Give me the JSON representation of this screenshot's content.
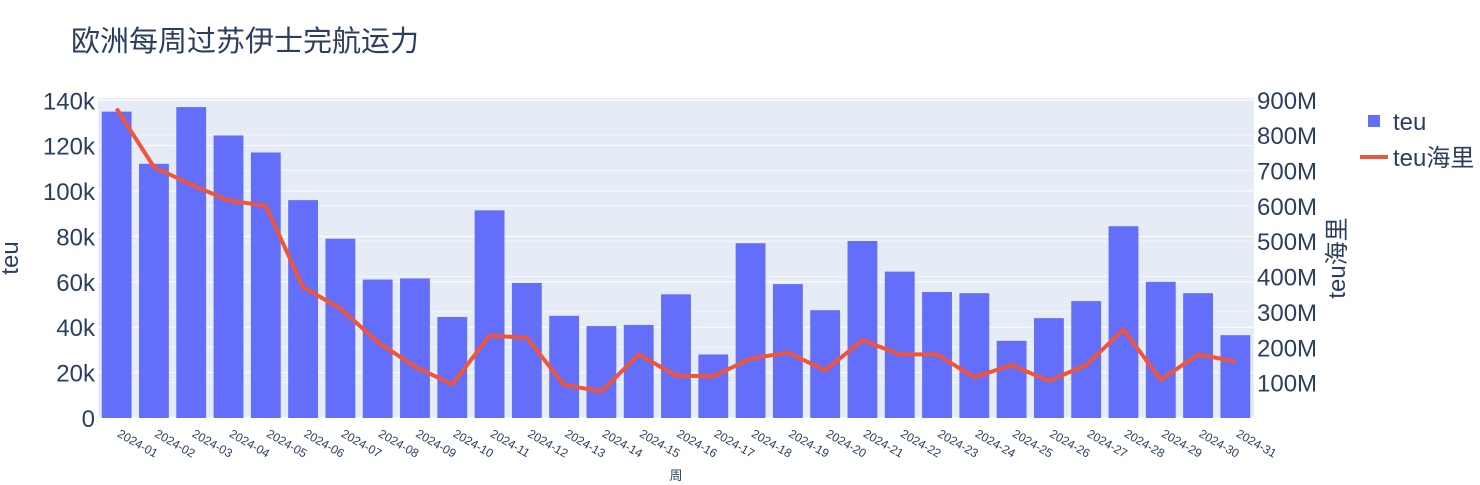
{
  "chart_data": {
    "type": "bar+line",
    "title": "欧洲每周过苏伊士完航运力",
    "xlabel": "周",
    "ylabel_left": "teu",
    "ylabel_right": "teu海里",
    "grid": true,
    "legend_position": "top-right",
    "categories": [
      "2024-01",
      "2024-02",
      "2024-03",
      "2024-04",
      "2024-05",
      "2024-06",
      "2024-07",
      "2024-08",
      "2024-09",
      "2024-10",
      "2024-11",
      "2024-12",
      "2024-13",
      "2024-14",
      "2024-15",
      "2024-16",
      "2024-17",
      "2024-18",
      "2024-19",
      "2024-20",
      "2024-21",
      "2024-22",
      "2024-23",
      "2024-24",
      "2024-25",
      "2024-26",
      "2024-27",
      "2024-28",
      "2024-29",
      "2024-30",
      "2024-31"
    ],
    "ylim_left": [
      0,
      141000
    ],
    "ylim_right": [
      19000,
      905000000
    ],
    "yticks_left": [
      0,
      20000,
      40000,
      60000,
      80000,
      100000,
      120000,
      140000
    ],
    "ytick_labels_left": [
      "0",
      "20k",
      "40k",
      "60k",
      "80k",
      "100k",
      "120k",
      "140k"
    ],
    "yticks_right": [
      100000000,
      200000000,
      300000000,
      400000000,
      500000000,
      600000000,
      700000000,
      800000000,
      900000000
    ],
    "ytick_labels_right": [
      "100M",
      "200M",
      "300M",
      "400M",
      "500M",
      "600M",
      "700M",
      "800M",
      "900M"
    ],
    "series": [
      {
        "name": "teu",
        "type": "bar",
        "axis": "left",
        "color": "#636efa",
        "values": [
          135000,
          112000,
          137000,
          124500,
          117000,
          96000,
          79000,
          61000,
          61500,
          44500,
          91500,
          59500,
          45000,
          40500,
          41000,
          54500,
          28000,
          77000,
          59000,
          47500,
          78000,
          64500,
          55500,
          55000,
          34000,
          44000,
          51500,
          84500,
          60000,
          55000,
          36500
        ]
      },
      {
        "name": "teu海里",
        "type": "line",
        "axis": "right",
        "color": "#ef553b",
        "values": [
          875000000,
          710000000,
          660000000,
          615000000,
          600000000,
          370000000,
          310000000,
          215000000,
          145000000,
          95000000,
          233000000,
          227000000,
          94000000,
          75000000,
          180000000,
          120000000,
          118000000,
          168000000,
          185000000,
          135000000,
          220000000,
          180000000,
          180000000,
          115000000,
          150000000,
          105000000,
          150000000,
          250000000,
          108000000,
          180000000,
          160000000
        ]
      }
    ]
  }
}
